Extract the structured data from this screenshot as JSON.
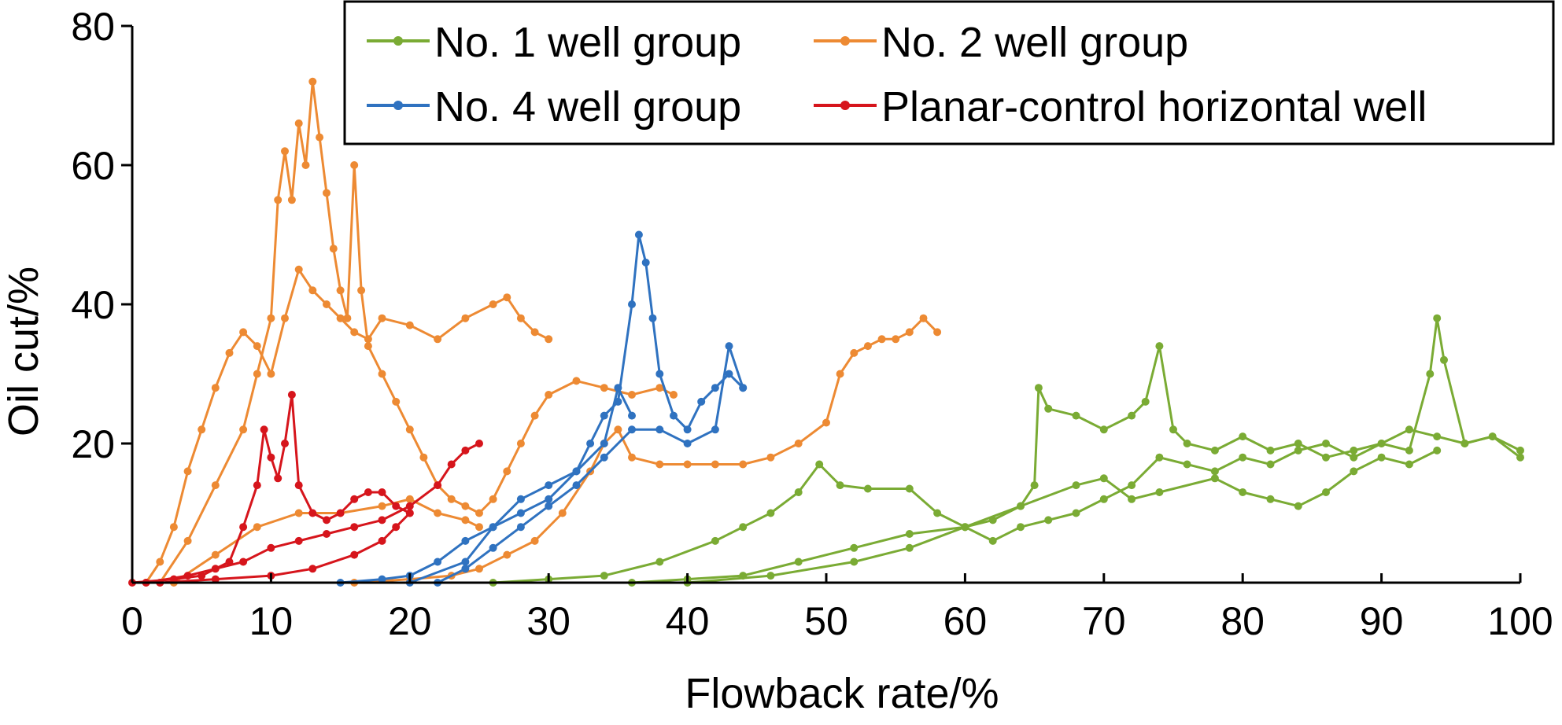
{
  "chart_data": {
    "type": "line",
    "xlabel": "Flowback rate/%",
    "ylabel": "Oil cut/%",
    "xlim": [
      0,
      100
    ],
    "ylim": [
      0,
      80
    ],
    "xticks": [
      0,
      10,
      20,
      30,
      40,
      50,
      60,
      70,
      80,
      90,
      100
    ],
    "yticks": [
      20,
      40,
      60,
      80
    ],
    "grid": false,
    "legend_position": "top-right",
    "series": [
      {
        "name": "No. 1 well group",
        "color": "#7aab34",
        "lines": [
          [
            [
              26,
              0
            ],
            [
              30,
              0.5
            ],
            [
              34,
              1
            ],
            [
              38,
              3
            ],
            [
              42,
              6
            ],
            [
              44,
              8
            ],
            [
              46,
              10
            ],
            [
              48,
              13
            ],
            [
              49.5,
              17
            ],
            [
              51,
              14
            ],
            [
              53,
              13.5
            ],
            [
              56,
              13.5
            ],
            [
              58,
              10
            ],
            [
              60,
              8
            ],
            [
              62,
              9
            ],
            [
              64,
              11
            ],
            [
              65,
              14
            ],
            [
              65.3,
              28
            ],
            [
              66,
              25
            ],
            [
              68,
              24
            ],
            [
              70,
              22
            ],
            [
              72,
              24
            ],
            [
              73,
              26
            ],
            [
              74,
              34
            ],
            [
              75,
              22
            ],
            [
              76,
              20
            ],
            [
              78,
              19
            ],
            [
              80,
              21
            ],
            [
              82,
              19
            ],
            [
              84,
              20
            ],
            [
              86,
              18
            ],
            [
              88,
              19
            ],
            [
              90,
              20
            ],
            [
              92,
              19
            ],
            [
              93.5,
              30
            ],
            [
              94,
              38
            ],
            [
              94.5,
              32
            ],
            [
              96,
              20
            ],
            [
              98,
              21
            ],
            [
              100,
              18
            ]
          ],
          [
            [
              36,
              0
            ],
            [
              40,
              0.5
            ],
            [
              44,
              1
            ],
            [
              48,
              3
            ],
            [
              52,
              5
            ],
            [
              56,
              7
            ],
            [
              60,
              8
            ],
            [
              62,
              6
            ],
            [
              64,
              8
            ],
            [
              66,
              9
            ],
            [
              68,
              10
            ],
            [
              70,
              12
            ],
            [
              72,
              14
            ],
            [
              74,
              18
            ],
            [
              76,
              17
            ],
            [
              78,
              16
            ],
            [
              80,
              18
            ],
            [
              82,
              17
            ],
            [
              84,
              19
            ],
            [
              86,
              20
            ],
            [
              88,
              18
            ],
            [
              90,
              20
            ],
            [
              92,
              22
            ],
            [
              94,
              21
            ],
            [
              96,
              20
            ],
            [
              98,
              21
            ],
            [
              100,
              19
            ]
          ],
          [
            [
              40,
              0
            ],
            [
              46,
              1
            ],
            [
              52,
              3
            ],
            [
              56,
              5
            ],
            [
              60,
              8
            ],
            [
              64,
              11
            ],
            [
              68,
              14
            ],
            [
              70,
              15
            ],
            [
              72,
              12
            ],
            [
              74,
              13
            ],
            [
              78,
              15
            ],
            [
              80,
              13
            ],
            [
              82,
              12
            ],
            [
              84,
              11
            ],
            [
              86,
              13
            ],
            [
              88,
              16
            ],
            [
              90,
              18
            ],
            [
              92,
              17
            ],
            [
              94,
              19
            ]
          ]
        ]
      },
      {
        "name": "No. 2 well group",
        "color": "#ed8a33",
        "lines": [
          [
            [
              1,
              0
            ],
            [
              2,
              3
            ],
            [
              3,
              8
            ],
            [
              4,
              16
            ],
            [
              5,
              22
            ],
            [
              6,
              28
            ],
            [
              7,
              33
            ],
            [
              8,
              36
            ],
            [
              9,
              34
            ],
            [
              10,
              30
            ],
            [
              11,
              38
            ],
            [
              12,
              45
            ],
            [
              13,
              42
            ],
            [
              14,
              40
            ],
            [
              15,
              38
            ],
            [
              16,
              36
            ],
            [
              17,
              35
            ],
            [
              18,
              38
            ],
            [
              20,
              37
            ],
            [
              22,
              35
            ],
            [
              24,
              38
            ],
            [
              26,
              40
            ],
            [
              27,
              41
            ],
            [
              28,
              38
            ],
            [
              29,
              36
            ],
            [
              30,
              35
            ]
          ],
          [
            [
              2,
              0
            ],
            [
              4,
              6
            ],
            [
              6,
              14
            ],
            [
              8,
              22
            ],
            [
              9,
              30
            ],
            [
              10,
              38
            ],
            [
              10.5,
              55
            ],
            [
              11,
              62
            ],
            [
              11.5,
              55
            ],
            [
              12,
              66
            ],
            [
              12.5,
              60
            ],
            [
              13,
              72
            ],
            [
              13.5,
              64
            ],
            [
              14,
              56
            ],
            [
              14.5,
              48
            ],
            [
              15,
              42
            ],
            [
              15.5,
              38
            ],
            [
              16,
              60
            ],
            [
              16.5,
              42
            ],
            [
              17,
              34
            ],
            [
              18,
              30
            ],
            [
              19,
              26
            ],
            [
              20,
              22
            ],
            [
              21,
              18
            ],
            [
              22,
              14
            ],
            [
              23,
              12
            ],
            [
              24,
              11
            ],
            [
              25,
              10
            ],
            [
              26,
              12
            ],
            [
              27,
              16
            ],
            [
              28,
              20
            ],
            [
              29,
              24
            ],
            [
              30,
              27
            ],
            [
              32,
              29
            ],
            [
              34,
              28
            ],
            [
              36,
              27
            ],
            [
              38,
              28
            ],
            [
              39,
              27
            ]
          ],
          [
            [
              3,
              0
            ],
            [
              6,
              4
            ],
            [
              9,
              8
            ],
            [
              12,
              10
            ],
            [
              15,
              10
            ],
            [
              18,
              11
            ],
            [
              20,
              12
            ],
            [
              22,
              10
            ],
            [
              24,
              9
            ],
            [
              25,
              8
            ]
          ],
          [
            [
              16,
              0
            ],
            [
              20,
              0.5
            ],
            [
              23,
              1
            ],
            [
              25,
              2
            ],
            [
              27,
              4
            ],
            [
              29,
              6
            ],
            [
              31,
              10
            ],
            [
              33,
              16
            ],
            [
              34,
              20
            ],
            [
              35,
              22
            ],
            [
              36,
              18
            ],
            [
              38,
              17
            ],
            [
              40,
              17
            ],
            [
              42,
              17
            ],
            [
              44,
              17
            ],
            [
              46,
              18
            ],
            [
              48,
              20
            ],
            [
              50,
              23
            ],
            [
              51,
              30
            ],
            [
              52,
              33
            ],
            [
              53,
              34
            ],
            [
              54,
              35
            ],
            [
              55,
              35
            ],
            [
              56,
              36
            ],
            [
              57,
              38
            ],
            [
              58,
              36
            ]
          ]
        ]
      },
      {
        "name": "No. 4 well group",
        "color": "#2f72c0",
        "lines": [
          [
            [
              15,
              0
            ],
            [
              18,
              0.5
            ],
            [
              20,
              1
            ],
            [
              22,
              3
            ],
            [
              24,
              6
            ],
            [
              26,
              8
            ],
            [
              28,
              10
            ],
            [
              30,
              12
            ],
            [
              32,
              16
            ],
            [
              33,
              20
            ],
            [
              34,
              24
            ],
            [
              35,
              26
            ],
            [
              36,
              40
            ],
            [
              36.5,
              50
            ],
            [
              37,
              46
            ],
            [
              37.5,
              38
            ],
            [
              38,
              30
            ],
            [
              39,
              24
            ],
            [
              40,
              22
            ],
            [
              41,
              26
            ],
            [
              42,
              28
            ],
            [
              43,
              30
            ],
            [
              44,
              28
            ]
          ],
          [
            [
              22,
              0
            ],
            [
              24,
              2
            ],
            [
              26,
              5
            ],
            [
              28,
              8
            ],
            [
              30,
              11
            ],
            [
              32,
              14
            ],
            [
              34,
              18
            ],
            [
              36,
              22
            ],
            [
              38,
              22
            ],
            [
              40,
              20
            ],
            [
              42,
              22
            ],
            [
              43,
              34
            ],
            [
              44,
              28
            ]
          ],
          [
            [
              20,
              0
            ],
            [
              24,
              3
            ],
            [
              26,
              8
            ],
            [
              28,
              12
            ],
            [
              30,
              14
            ],
            [
              32,
              16
            ],
            [
              34,
              20
            ],
            [
              35,
              28
            ],
            [
              36,
              24
            ]
          ]
        ]
      },
      {
        "name": "Planar-control horizontal well",
        "color": "#d6151c",
        "lines": [
          [
            [
              0,
              0
            ],
            [
              3,
              0.5
            ],
            [
              5,
              1
            ],
            [
              7,
              3
            ],
            [
              8,
              8
            ],
            [
              9,
              14
            ],
            [
              9.5,
              22
            ],
            [
              10,
              18
            ],
            [
              10.5,
              15
            ],
            [
              11,
              20
            ],
            [
              11.5,
              27
            ],
            [
              12,
              14
            ],
            [
              13,
              10
            ],
            [
              14,
              9
            ],
            [
              15,
              10
            ],
            [
              16,
              12
            ],
            [
              17,
              13
            ],
            [
              18,
              13
            ],
            [
              19,
              11
            ],
            [
              20,
              10
            ]
          ],
          [
            [
              1,
              0
            ],
            [
              4,
              1
            ],
            [
              6,
              2
            ],
            [
              8,
              3
            ],
            [
              10,
              5
            ],
            [
              12,
              6
            ],
            [
              14,
              7
            ],
            [
              16,
              8
            ],
            [
              18,
              9
            ],
            [
              20,
              11
            ],
            [
              22,
              14
            ],
            [
              23,
              17
            ],
            [
              24,
              19
            ],
            [
              25,
              20
            ]
          ],
          [
            [
              2,
              0
            ],
            [
              6,
              0.5
            ],
            [
              10,
              1
            ],
            [
              13,
              2
            ],
            [
              16,
              4
            ],
            [
              18,
              6
            ],
            [
              19,
              8
            ],
            [
              20,
              10
            ]
          ]
        ]
      }
    ]
  }
}
